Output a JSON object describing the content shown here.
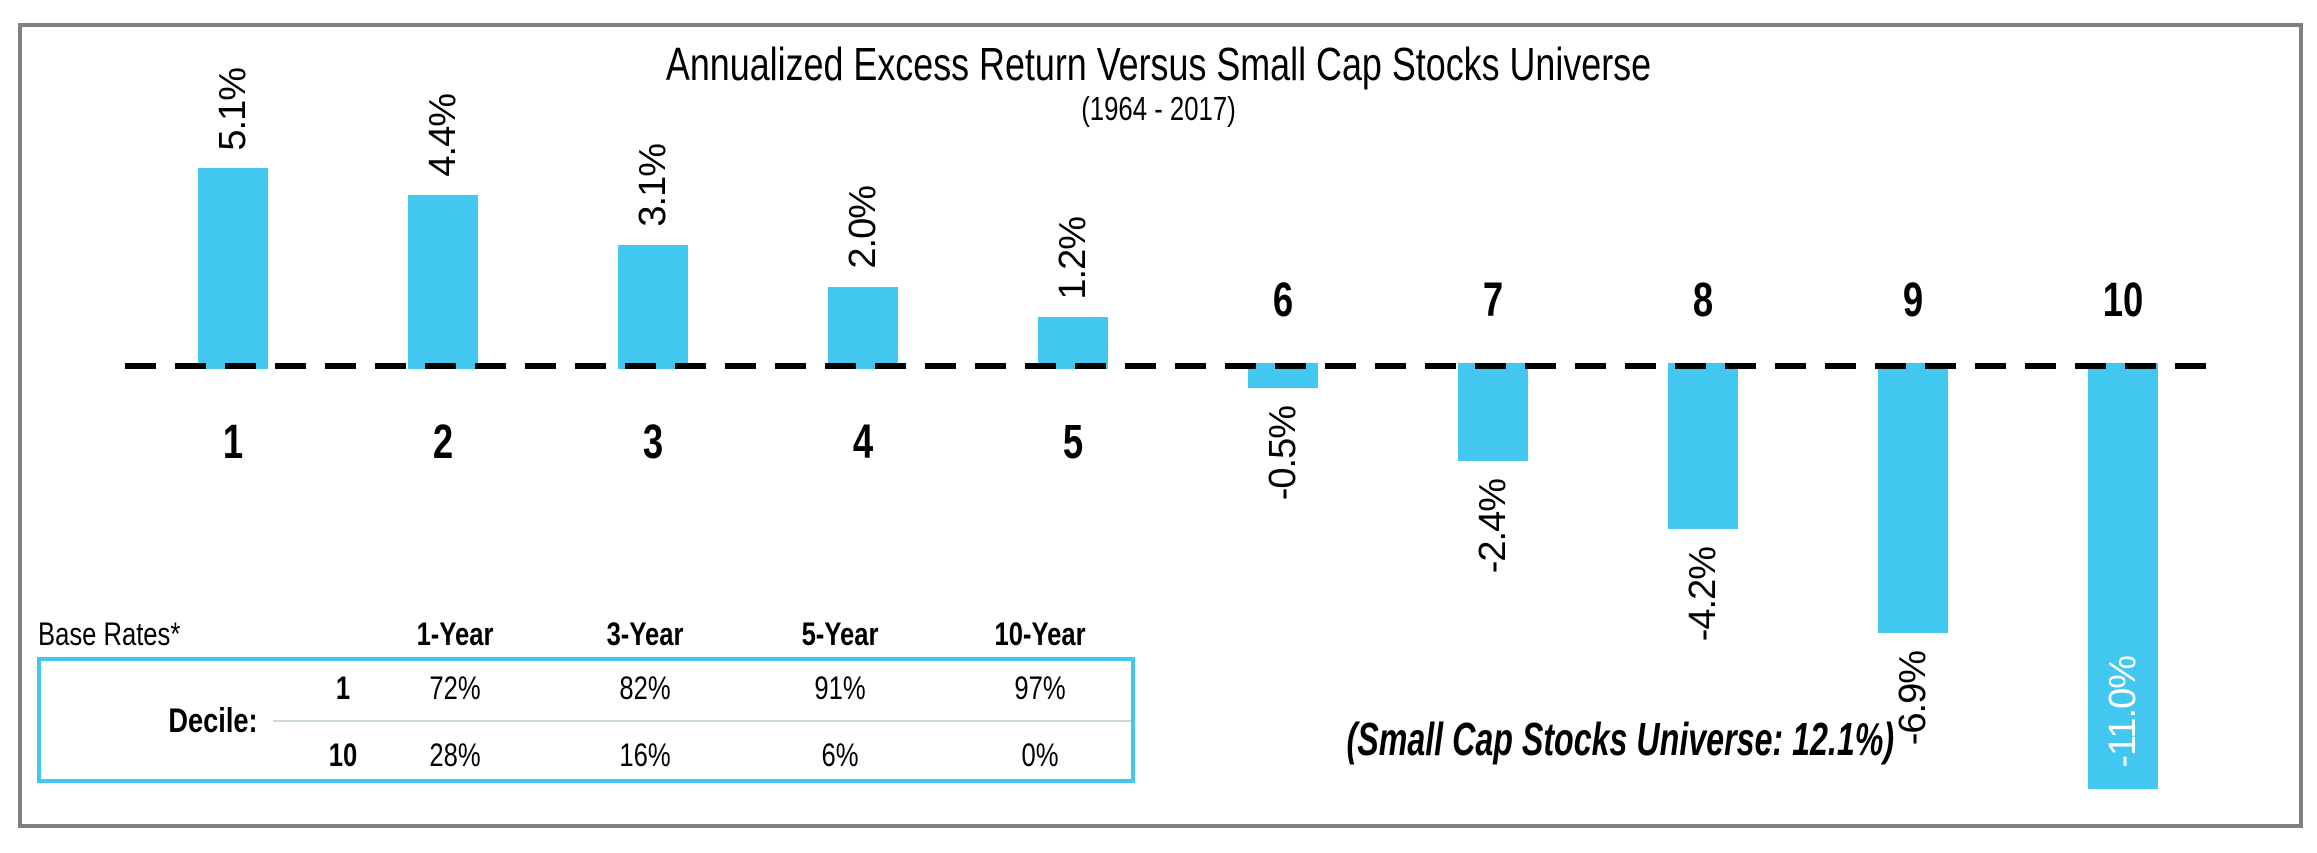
{
  "chart_data": {
    "type": "bar",
    "title": "Annualized Excess Return Versus Small Cap Stocks Universe",
    "subtitle": "(1964 - 2017)",
    "categories": [
      "1",
      "2",
      "3",
      "4",
      "5",
      "6",
      "7",
      "8",
      "9",
      "10"
    ],
    "values": [
      5.1,
      4.4,
      3.1,
      2.0,
      1.2,
      -0.5,
      -2.4,
      -4.2,
      -6.9,
      -11.0
    ],
    "value_labels": [
      "5.1%",
      "4.4%",
      "3.1%",
      "2.0%",
      "1.2%",
      "-0.5%",
      "-2.4%",
      "-4.2%",
      "-6.9%",
      "-11.0%"
    ],
    "inside_label_category": "10",
    "xlabel": "",
    "ylabel": "",
    "ylim": [
      -11.5,
      6
    ],
    "grid": false,
    "legend": false,
    "baseline": "dashed zero line",
    "annotation": "(Small Cap Stocks Universe: 12.1%)"
  },
  "base_rates_table": {
    "label": "Base Rates*",
    "columns": [
      "1-Year",
      "3-Year",
      "5-Year",
      "10-Year"
    ],
    "row_label": "Decile:",
    "rows": [
      {
        "decile": "1",
        "values": [
          "72%",
          "82%",
          "91%",
          "97%"
        ]
      },
      {
        "decile": "10",
        "values": [
          "28%",
          "16%",
          "6%",
          "0%"
        ]
      }
    ]
  },
  "colors": {
    "bar": "#41C7F0",
    "table_border": "#41C7F0",
    "frame": "#808080",
    "baseline": "#000000",
    "inside_label_text": "#FFFFFF",
    "row_divider": "#C9D8E0"
  }
}
